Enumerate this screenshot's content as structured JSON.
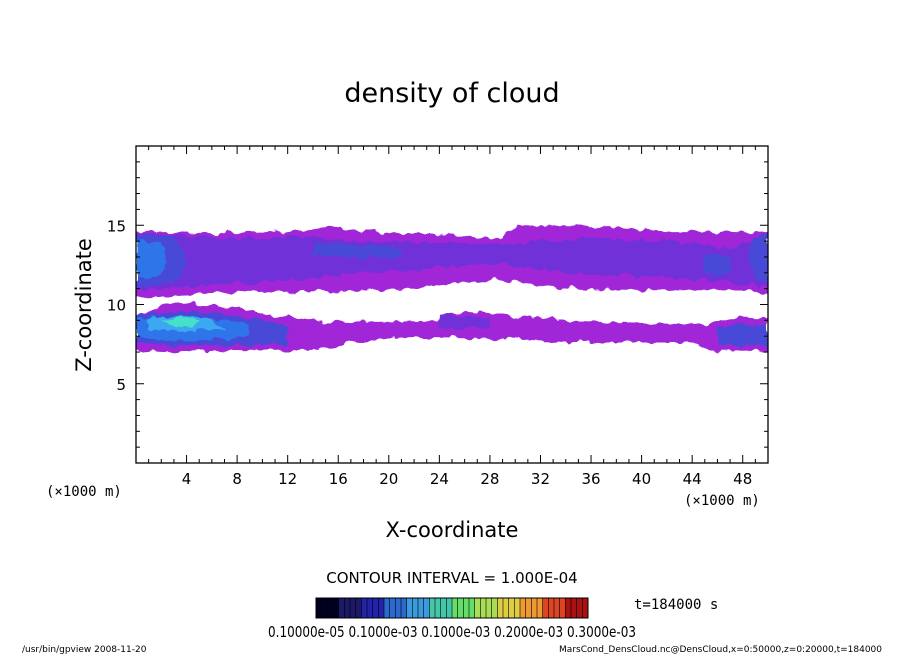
{
  "chart_data": {
    "type": "heatmap",
    "title": "density of cloud",
    "xlabel": "X-coordinate",
    "ylabel": "Z-coordinate",
    "x_unit": "(×1000 m)",
    "z_unit": "(×1000 m)",
    "xlim": [
      0,
      50
    ],
    "ylim": [
      0,
      20
    ],
    "x_ticks": [
      4,
      8,
      12,
      16,
      20,
      24,
      28,
      32,
      36,
      40,
      44,
      48
    ],
    "y_ticks": [
      5,
      10,
      15
    ],
    "grid": false,
    "contour_interval": "CONTOUR INTERVAL = 1.000E-04",
    "time_label": "t=184000 s",
    "colorbar_labels": "0.10000e-05 0.1000e-03 0.1000e-03 0.2000e-03 0.3000e-03",
    "colorbar_colors": [
      "#000022",
      "#1a1a66",
      "#2222aa",
      "#2a6acc",
      "#3a9adc",
      "#44c6aa",
      "#66dd66",
      "#a8dd55",
      "#ddcc44",
      "#ee9933",
      "#dd4422",
      "#aa1111"
    ],
    "layer_colors": [
      "#a028d8",
      "#7030d8",
      "#4a48d8",
      "#2e74ea",
      "#3aa8f0",
      "#44e0c8",
      "#5ae080"
    ],
    "footer_left": "/usr/bin/gpview   2008-11-20",
    "footer_right": "MarsCond_DensCloud.nc@DensCloud,x=0:50000,z=0:20000,t=184000"
  }
}
